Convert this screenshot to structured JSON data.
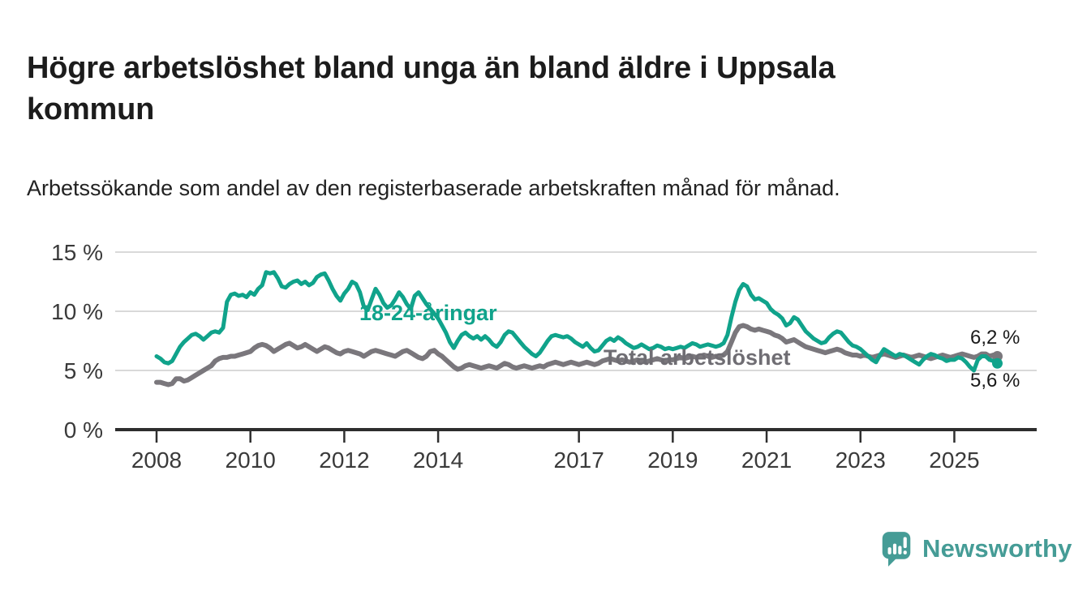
{
  "header": {
    "title": "Högre arbetslöshet bland unga än bland äldre i Uppsala kommun",
    "subtitle": "Arbetssökande som andel av den registerbaserade arbetskraften månad för månad."
  },
  "colors": {
    "accent_teal": "#10a38b",
    "series_gray": "#7a777c",
    "label_gray": "#6f6d73",
    "grid": "#d9d9d9",
    "axis": "#2e2e2e",
    "tick_text": "#3a3a3a",
    "value_text": "#1a1a1a",
    "logo_teal": "#459c96"
  },
  "chart_data": {
    "type": "line",
    "title": "Högre arbetslöshet bland unga än bland äldre i Uppsala kommun",
    "x_unit": "month",
    "x_start_year": 2008,
    "points_per_year": 12,
    "ylim": [
      0,
      15.8
    ],
    "grid": "horizontal",
    "y_ticks": [
      {
        "value": 0,
        "label": "0 %"
      },
      {
        "value": 5,
        "label": "5 %"
      },
      {
        "value": 10,
        "label": "10 %"
      },
      {
        "value": 15,
        "label": "15 %"
      }
    ],
    "x_ticks": [
      {
        "year": 2008,
        "label": "2008"
      },
      {
        "year": 2010,
        "label": "2010"
      },
      {
        "year": 2012,
        "label": "2012"
      },
      {
        "year": 2014,
        "label": "2014"
      },
      {
        "year": 2017,
        "label": "2017"
      },
      {
        "year": 2019,
        "label": "2019"
      },
      {
        "year": 2021,
        "label": "2021"
      },
      {
        "year": 2023,
        "label": "2023"
      },
      {
        "year": 2025,
        "label": "2025"
      }
    ],
    "series": [
      {
        "name": "18-24-åringar",
        "color": "#10a38b",
        "end_label": "5,6 %",
        "end_value": 5.6,
        "values": [
          6.2,
          6.0,
          5.7,
          5.6,
          5.8,
          6.4,
          7.0,
          7.4,
          7.7,
          8.0,
          8.1,
          7.9,
          7.6,
          7.9,
          8.2,
          8.3,
          8.2,
          8.6,
          10.8,
          11.4,
          11.5,
          11.3,
          11.4,
          11.2,
          11.6,
          11.4,
          11.9,
          12.2,
          13.3,
          13.2,
          13.3,
          12.8,
          12.1,
          12.0,
          12.3,
          12.5,
          12.6,
          12.3,
          12.5,
          12.2,
          12.4,
          12.9,
          13.1,
          13.2,
          12.6,
          11.9,
          11.3,
          10.9,
          11.5,
          11.9,
          12.5,
          12.3,
          11.6,
          10.4,
          10.1,
          11.0,
          11.9,
          11.4,
          10.7,
          10.3,
          10.5,
          11.0,
          11.6,
          11.2,
          10.6,
          10.2,
          11.3,
          11.6,
          11.1,
          10.6,
          10.2,
          9.8,
          9.4,
          8.8,
          8.2,
          7.4,
          6.9,
          7.5,
          8.0,
          8.2,
          7.9,
          7.7,
          7.9,
          7.6,
          7.9,
          7.6,
          7.2,
          7.0,
          7.4,
          8.0,
          8.3,
          8.2,
          7.8,
          7.4,
          7.0,
          6.7,
          6.4,
          6.2,
          6.5,
          7.0,
          7.5,
          7.9,
          8.0,
          7.9,
          7.8,
          7.9,
          7.7,
          7.4,
          7.2,
          7.0,
          7.3,
          6.9,
          6.6,
          6.7,
          7.1,
          7.5,
          7.7,
          7.5,
          7.8,
          7.6,
          7.3,
          7.1,
          6.9,
          7.0,
          7.2,
          7.0,
          6.8,
          6.9,
          7.1,
          7.0,
          6.8,
          6.9,
          6.8,
          6.9,
          7.0,
          6.9,
          7.1,
          7.3,
          7.2,
          7.0,
          7.1,
          7.2,
          7.1,
          7.0,
          7.1,
          7.3,
          8.0,
          9.5,
          10.8,
          11.8,
          12.3,
          12.1,
          11.4,
          11.0,
          11.1,
          10.9,
          10.7,
          10.2,
          9.9,
          9.7,
          9.4,
          8.8,
          9.0,
          9.5,
          9.3,
          8.8,
          8.3,
          8.0,
          7.7,
          7.5,
          7.3,
          7.4,
          7.8,
          8.1,
          8.3,
          8.2,
          7.8,
          7.4,
          7.1,
          7.0,
          6.8,
          6.5,
          6.2,
          5.9,
          5.7,
          6.3,
          6.8,
          6.6,
          6.4,
          6.2,
          6.4,
          6.3,
          6.1,
          5.9,
          5.7,
          5.5,
          5.9,
          6.2,
          6.4,
          6.3,
          6.1,
          6.0,
          5.8,
          5.9,
          5.9,
          6.1,
          6.0,
          5.7,
          5.3,
          5.0,
          5.9,
          6.2,
          6.2,
          5.9,
          5.8,
          5.6
        ]
      },
      {
        "name": "Total arbetslöshet",
        "color": "#7a777c",
        "end_label": "6,2 %",
        "end_value": 6.2,
        "values": [
          4.0,
          4.0,
          3.9,
          3.8,
          3.9,
          4.3,
          4.3,
          4.1,
          4.2,
          4.4,
          4.6,
          4.8,
          5.0,
          5.2,
          5.4,
          5.8,
          6.0,
          6.1,
          6.1,
          6.2,
          6.2,
          6.3,
          6.4,
          6.5,
          6.6,
          6.9,
          7.1,
          7.2,
          7.1,
          6.9,
          6.6,
          6.8,
          7.0,
          7.2,
          7.3,
          7.1,
          6.9,
          7.0,
          7.2,
          7.0,
          6.8,
          6.6,
          6.8,
          7.0,
          6.9,
          6.7,
          6.5,
          6.4,
          6.6,
          6.7,
          6.6,
          6.5,
          6.4,
          6.2,
          6.4,
          6.6,
          6.7,
          6.6,
          6.5,
          6.4,
          6.3,
          6.2,
          6.4,
          6.6,
          6.7,
          6.5,
          6.3,
          6.1,
          6.0,
          6.2,
          6.6,
          6.7,
          6.4,
          6.2,
          5.9,
          5.6,
          5.3,
          5.1,
          5.2,
          5.4,
          5.5,
          5.4,
          5.3,
          5.2,
          5.3,
          5.4,
          5.3,
          5.2,
          5.4,
          5.6,
          5.5,
          5.3,
          5.2,
          5.3,
          5.4,
          5.3,
          5.2,
          5.3,
          5.4,
          5.3,
          5.5,
          5.6,
          5.7,
          5.6,
          5.5,
          5.6,
          5.7,
          5.6,
          5.5,
          5.6,
          5.7,
          5.6,
          5.5,
          5.6,
          5.8,
          5.9,
          6.0,
          5.9,
          5.8,
          5.9,
          5.8,
          5.7,
          5.8,
          5.9,
          5.8,
          5.7,
          5.8,
          5.9,
          6.0,
          5.9,
          5.8,
          5.9,
          5.9,
          6.0,
          6.1,
          6.0,
          6.1,
          6.2,
          6.1,
          6.2,
          6.3,
          6.2,
          6.1,
          6.2,
          6.2,
          6.3,
          6.6,
          7.4,
          8.2,
          8.7,
          8.8,
          8.7,
          8.5,
          8.4,
          8.5,
          8.4,
          8.3,
          8.2,
          8.0,
          7.9,
          7.7,
          7.4,
          7.5,
          7.6,
          7.4,
          7.2,
          7.0,
          6.9,
          6.8,
          6.7,
          6.6,
          6.5,
          6.6,
          6.7,
          6.8,
          6.7,
          6.5,
          6.4,
          6.3,
          6.3,
          6.2,
          6.3,
          6.2,
          6.1,
          6.2,
          6.3,
          6.4,
          6.3,
          6.2,
          6.1,
          6.2,
          6.3,
          6.2,
          6.1,
          6.2,
          6.3,
          6.2,
          6.1,
          6.0,
          6.1,
          6.2,
          6.3,
          6.2,
          6.1,
          6.2,
          6.3,
          6.4,
          6.3,
          6.2,
          6.1,
          6.2,
          6.4,
          6.4,
          6.2,
          6.3,
          6.2
        ]
      }
    ]
  },
  "branding": {
    "logo_text": "Newsworthy"
  }
}
